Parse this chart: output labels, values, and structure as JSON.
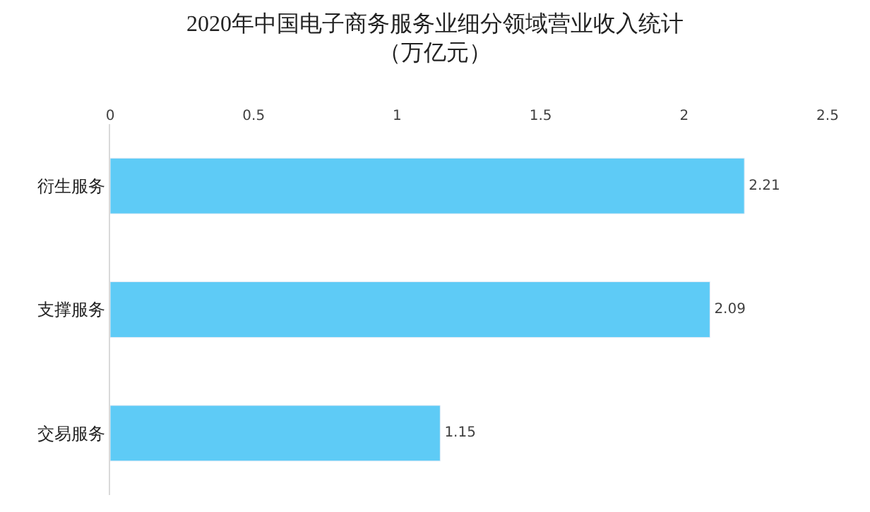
{
  "chart_data": {
    "type": "bar",
    "orientation": "horizontal",
    "title": "2020年中国电子商务服务业细分领域营业收入统计",
    "subtitle": "（万亿元）",
    "categories": [
      "衍生服务",
      "支撑服务",
      "交易服务"
    ],
    "values": [
      2.21,
      2.09,
      1.15
    ],
    "color": "#5ecbf6",
    "xlim": [
      0,
      2.5
    ],
    "xticks": [
      0,
      0.5,
      1,
      1.5,
      2,
      2.5
    ],
    "data_labels": true
  }
}
